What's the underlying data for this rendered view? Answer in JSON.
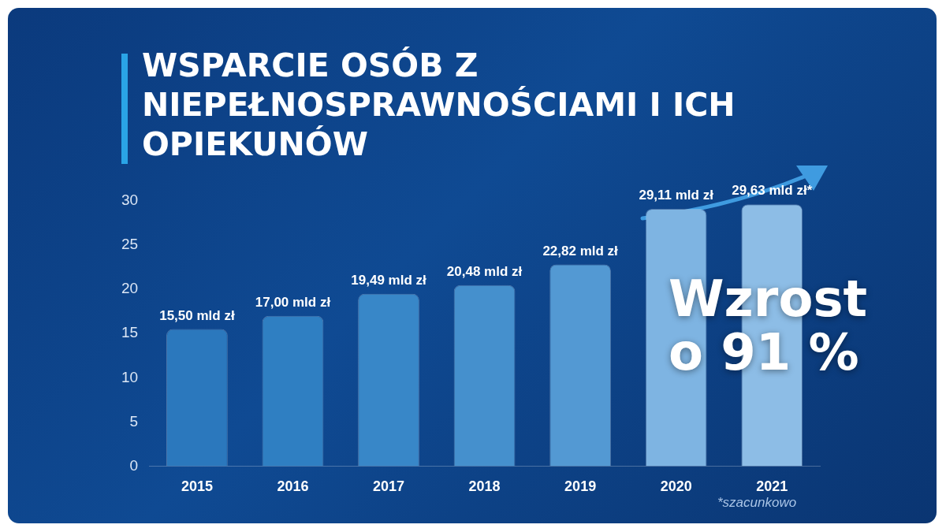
{
  "chart_data": {
    "type": "bar",
    "title": "WSPARCIE OSÓB Z NIEPEŁNOSPRAWNOŚCIAMI I ICH OPIEKUNÓW",
    "categories": [
      "2015",
      "2016",
      "2017",
      "2018",
      "2019",
      "2020",
      "2021"
    ],
    "values": [
      15.5,
      17.0,
      19.49,
      20.48,
      22.82,
      29.11,
      29.63
    ],
    "value_labels": [
      "15,50 mld zł",
      "17,00 mld zł",
      "19,49 mld zł",
      "20,48 mld zł",
      "22,82 mld zł",
      "29,11 mld zł",
      "29,63 mld zł*"
    ],
    "colors": [
      "#2b78bd",
      "#2f7fc2",
      "#3887c8",
      "#4590cd",
      "#5399d3",
      "#7eb4e2",
      "#8dbde6"
    ],
    "ylim": [
      0,
      30
    ],
    "yticks": [
      0,
      5,
      10,
      15,
      20,
      25,
      30
    ],
    "annotations": [
      "Wzrost o 91 %",
      "*szacunkowo"
    ]
  }
}
